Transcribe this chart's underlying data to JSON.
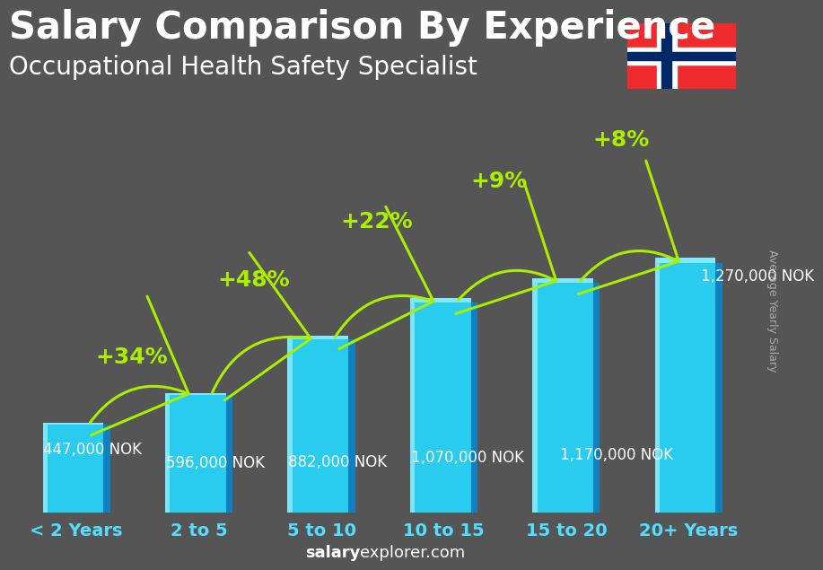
{
  "title": "Salary Comparison By Experience",
  "subtitle": "Occupational Health Safety Specialist",
  "categories": [
    "< 2 Years",
    "2 to 5",
    "5 to 10",
    "10 to 15",
    "15 to 20",
    "20+ Years"
  ],
  "values": [
    447000,
    596000,
    882000,
    1070000,
    1170000,
    1270000
  ],
  "labels": [
    "447,000 NOK",
    "596,000 NOK",
    "882,000 NOK",
    "1,070,000 NOK",
    "1,170,000 NOK",
    "1,270,000 NOK"
  ],
  "pct_changes": [
    "+34%",
    "+48%",
    "+22%",
    "+9%",
    "+8%"
  ],
  "bar_face_color": "#29ccee",
  "bar_side_color": "#1080c0",
  "bar_top_color": "#80e8ff",
  "bar_highlight_color": "#a0f0ff",
  "bg_color": "#555555",
  "text_color": "#ffffff",
  "green_color": "#aaee00",
  "cat_color": "#55ddff",
  "ylabel": "Average Yearly Salary",
  "watermark_salary": "salary",
  "watermark_rest": "explorer.com",
  "ylabel_color": "#aaaaaa",
  "title_fontsize": 30,
  "subtitle_fontsize": 20,
  "cat_fontsize": 14,
  "bar_label_fontsize": 12,
  "pct_fontsize": 18,
  "watermark_fontsize": 13
}
